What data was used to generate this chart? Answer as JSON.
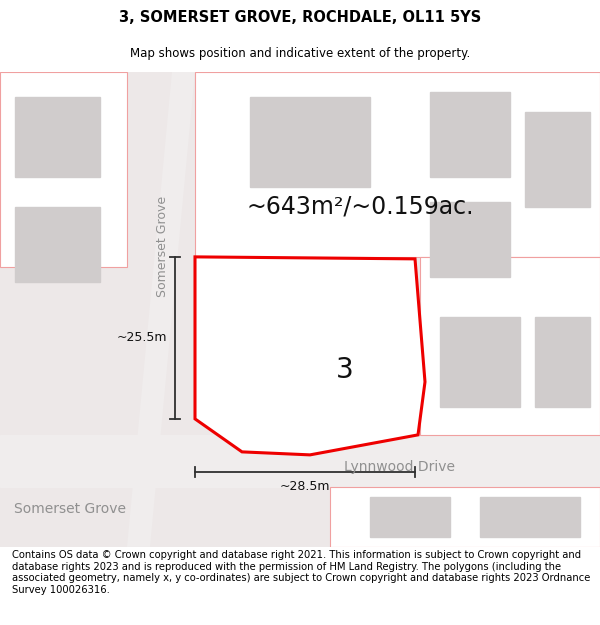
{
  "title": "3, SOMERSET GROVE, ROCHDALE, OL11 5YS",
  "subtitle": "Map shows position and indicative extent of the property.",
  "footer": "Contains OS data © Crown copyright and database right 2021. This information is subject to Crown copyright and database rights 2023 and is reproduced with the permission of HM Land Registry. The polygons (including the associated geometry, namely x, y co-ordinates) are subject to Crown copyright and database rights 2023 Ordnance Survey 100026316.",
  "area_label": "~643m²/~0.159ac.",
  "number_label": "3",
  "width_label": "~28.5m",
  "height_label": "~25.5m",
  "street_somerset_vertical": "Somerset Grove",
  "street_lynnwood": "Lynnwood Drive",
  "street_somerset_bottom": "Somerset Grove",
  "bg_color": "#ede8e8",
  "road_color": "#f5f0f0",
  "white_color": "#ffffff",
  "building_fill": "#d0cccc",
  "building_fill2": "#c8c4c4",
  "parcel_edge": "#f0a0a0",
  "plot_edge": "#ee0000",
  "plot_fill": "#ffffff",
  "dim_color": "#303030",
  "text_dark": "#111111",
  "text_gray": "#909090",
  "title_fontsize": 10.5,
  "subtitle_fontsize": 8.5,
  "footer_fontsize": 7.2,
  "area_fontsize": 17,
  "number_fontsize": 20,
  "dim_fontsize": 9,
  "street_fontsize": 9
}
